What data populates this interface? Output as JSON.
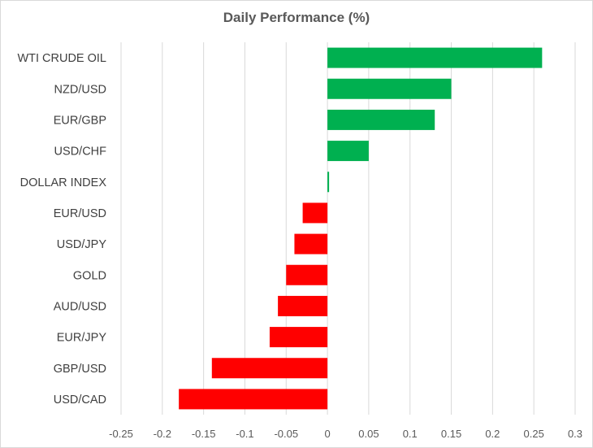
{
  "chart_data": {
    "type": "bar",
    "orientation": "horizontal",
    "title": "Daily Performance (%)",
    "xlabel": "",
    "ylabel": "",
    "categories": [
      "WTI CRUDE OIL",
      "NZD/USD",
      "EUR/GBP",
      "USD/CHF",
      "DOLLAR INDEX",
      "EUR/USD",
      "USD/JPY",
      "GOLD",
      "AUD/USD",
      "EUR/JPY",
      "GBP/USD",
      "USD/CAD"
    ],
    "values": [
      0.26,
      0.15,
      0.13,
      0.05,
      0.002,
      -0.03,
      -0.04,
      -0.05,
      -0.06,
      -0.07,
      -0.14,
      -0.18
    ],
    "xlim": [
      -0.25,
      0.3
    ],
    "xticks": [
      -0.25,
      -0.2,
      -0.15,
      -0.1,
      -0.05,
      0,
      0.05,
      0.1,
      0.15,
      0.2,
      0.25,
      0.3
    ],
    "xtick_labels": [
      "-0.25",
      "-0.2",
      "-0.15",
      "-0.1",
      "-0.05",
      "0",
      "0.05",
      "0.1",
      "0.15",
      "0.2",
      "0.25",
      "0.3"
    ],
    "grid": "vertical",
    "legend": "none",
    "colors": {
      "positive": "#00b050",
      "negative": "#ff0000",
      "grid": "#d9d9d9"
    }
  }
}
